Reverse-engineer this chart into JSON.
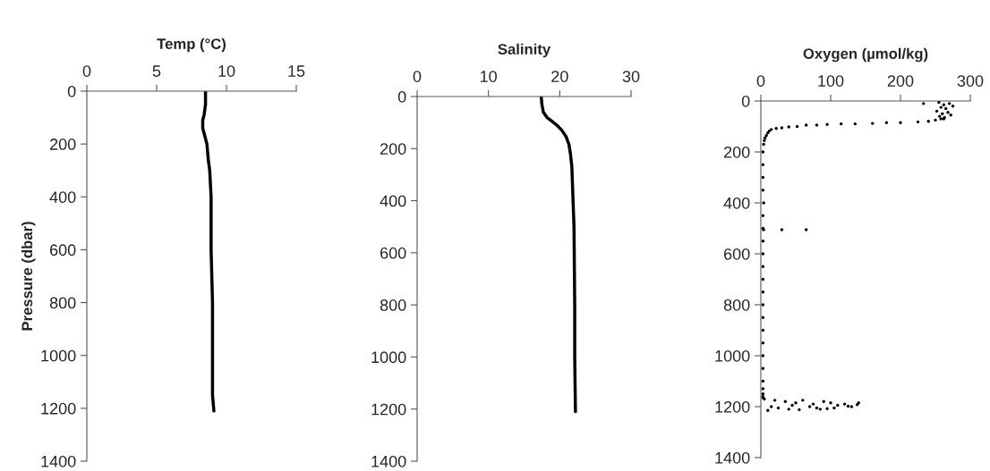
{
  "chart_data": [
    {
      "type": "line",
      "title": "Temp (°C)",
      "ylabel": "Pressure (dbar)",
      "xlim": [
        0,
        15
      ],
      "xticks": [
        0,
        5,
        10,
        15
      ],
      "ylim": [
        1400,
        0
      ],
      "yticks": [
        0,
        200,
        400,
        600,
        800,
        1000,
        1200,
        1400
      ],
      "grid": false,
      "legend": false,
      "marker": "none",
      "line_style": "solid",
      "series": [
        {
          "color": "#000000",
          "x": [
            8.5,
            8.5,
            8.4,
            8.3,
            8.3,
            8.4,
            8.6,
            8.7,
            8.8,
            8.9,
            8.9,
            8.9,
            9.0,
            9.0,
            9.0,
            9.1
          ],
          "values": [
            0,
            50,
            90,
            110,
            140,
            160,
            200,
            260,
            300,
            400,
            500,
            600,
            800,
            1000,
            1150,
            1210
          ]
        }
      ]
    },
    {
      "type": "line",
      "title": "Salinity",
      "xlim": [
        0,
        30
      ],
      "xticks": [
        0,
        10,
        20,
        30
      ],
      "ylim": [
        1400,
        0
      ],
      "yticks": [
        0,
        200,
        400,
        600,
        800,
        1000,
        1200,
        1400
      ],
      "grid": false,
      "legend": false,
      "marker": "none",
      "line_style": "solid",
      "series": [
        {
          "color": "#000000",
          "x": [
            17.4,
            17.5,
            17.7,
            18.2,
            18.9,
            19.6,
            20.3,
            20.9,
            21.3,
            21.5,
            21.7,
            21.8,
            22.0,
            22.1,
            22.1,
            22.2
          ],
          "values": [
            0,
            30,
            60,
            80,
            95,
            110,
            130,
            155,
            185,
            220,
            270,
            350,
            500,
            800,
            1000,
            1210
          ]
        }
      ]
    },
    {
      "type": "scatter",
      "title": "Oxygen (µmol/kg)",
      "xlim": [
        0,
        300
      ],
      "xticks": [
        0,
        100,
        200,
        300
      ],
      "ylim": [
        1400,
        0
      ],
      "yticks": [
        0,
        200,
        400,
        600,
        800,
        1000,
        1200,
        1400
      ],
      "grid": false,
      "legend": false,
      "marker": "circle",
      "series": [
        {
          "color": "#000000",
          "x": [
            233,
            255,
            262,
            270,
            258,
            265,
            275,
            252,
            260,
            268,
            256,
            263,
            272,
            258,
            250,
            262,
            240,
            225,
            200,
            180,
            160,
            135,
            115,
            95,
            80,
            65,
            52,
            40,
            30,
            22,
            15,
            12,
            10,
            8,
            6,
            5,
            4,
            3,
            3,
            3,
            3,
            4,
            3,
            3,
            4,
            3,
            3,
            3,
            30,
            65,
            3,
            3,
            3,
            3,
            3,
            3,
            3,
            3,
            3,
            3,
            3,
            3,
            3,
            5,
            20,
            35,
            50,
            60,
            75,
            90,
            100,
            110,
            120,
            130,
            140,
            15,
            25,
            45,
            70,
            85,
            105,
            125,
            138,
            10,
            40,
            55,
            80,
            95
          ],
          "values": [
            10,
            5,
            15,
            10,
            25,
            30,
            20,
            40,
            50,
            45,
            60,
            65,
            55,
            70,
            75,
            70,
            80,
            82,
            85,
            85,
            88,
            90,
            90,
            92,
            95,
            95,
            100,
            102,
            105,
            108,
            112,
            118,
            125,
            135,
            145,
            155,
            170,
            200,
            250,
            300,
            350,
            400,
            450,
            500,
            505,
            550,
            600,
            650,
            505,
            505,
            700,
            750,
            800,
            850,
            900,
            950,
            1000,
            1050,
            1100,
            1130,
            1150,
            1160,
            1165,
            1170,
            1175,
            1180,
            1185,
            1175,
            1190,
            1180,
            1185,
            1195,
            1190,
            1200,
            1185,
            1200,
            1205,
            1195,
            1200,
            1210,
            1205,
            1198,
            1192,
            1215,
            1210,
            1212,
            1205,
            1208
          ]
        }
      ]
    }
  ]
}
